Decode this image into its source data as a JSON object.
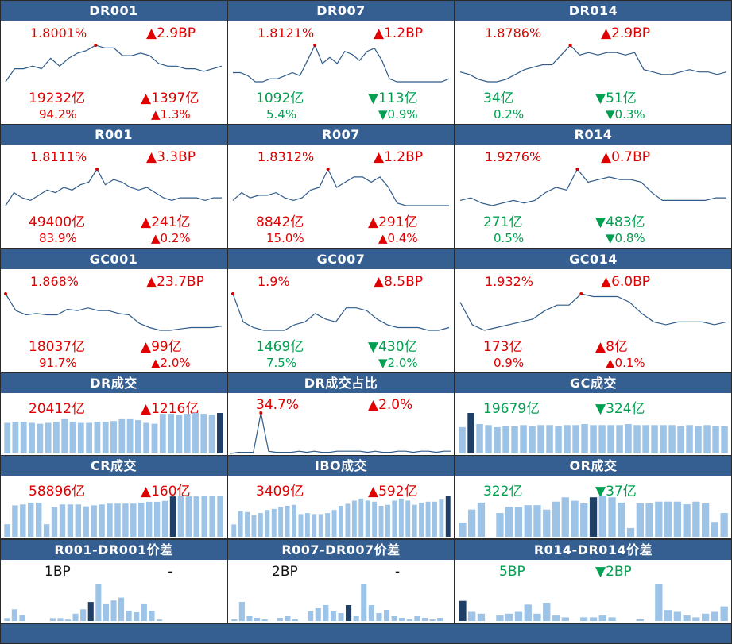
{
  "colors": {
    "header_bg": "#365f91",
    "up": "#e00000",
    "down": "#00a050",
    "neutral": "#111111",
    "line": "#2f5b8a",
    "bar": "#9dc3e6",
    "bar_highlight": "#1f3f66"
  },
  "rows": [
    {
      "kind": "line3",
      "panels": [
        {
          "title": "DR001",
          "rate": "1.8001%",
          "rate_color": "red",
          "bp": "▲2.9BP",
          "bp_color": "red",
          "volume": "19232亿",
          "volume_color": "red",
          "vol_change": "▲1397亿",
          "vol_change_color": "red",
          "share": "94.2%",
          "share_color": "red",
          "share_change": "▲1.3%",
          "share_change_color": "red",
          "chart_data": {
            "type": "line",
            "values": [
              1.66,
              1.71,
              1.71,
              1.72,
              1.71,
              1.75,
              1.72,
              1.75,
              1.77,
              1.78,
              1.8,
              1.79,
              1.79,
              1.76,
              1.76,
              1.77,
              1.76,
              1.73,
              1.72,
              1.72,
              1.71,
              1.71,
              1.7,
              1.71,
              1.72
            ],
            "highlight_index": 10
          }
        },
        {
          "title": "DR007",
          "rate": "1.8121%",
          "rate_color": "red",
          "bp": "▲1.2BP",
          "bp_color": "red",
          "volume": "1092亿",
          "volume_color": "green",
          "vol_change": "▼113亿",
          "vol_change_color": "green",
          "share": "5.4%",
          "share_color": "green",
          "share_change": "▼0.9%",
          "share_change_color": "green",
          "chart_data": {
            "type": "line",
            "values": [
              1.72,
              1.72,
              1.71,
              1.69,
              1.69,
              1.7,
              1.7,
              1.71,
              1.72,
              1.71,
              1.76,
              1.81,
              1.75,
              1.77,
              1.75,
              1.79,
              1.78,
              1.76,
              1.79,
              1.8,
              1.76,
              1.7,
              1.69,
              1.69,
              1.69,
              1.69,
              1.69,
              1.69,
              1.69,
              1.7
            ],
            "highlight_index": 11
          }
        },
        {
          "title": "DR014",
          "rate": "1.8786%",
          "rate_color": "red",
          "bp": "▲2.9BP",
          "bp_color": "red",
          "volume": "34亿",
          "volume_color": "green",
          "vol_change": "▼51亿",
          "vol_change_color": "green",
          "share": "0.2%",
          "share_color": "green",
          "share_change": "▼0.3%",
          "share_change_color": "green",
          "chart_data": {
            "type": "line",
            "values": [
              1.77,
              1.76,
              1.74,
              1.73,
              1.73,
              1.74,
              1.76,
              1.78,
              1.79,
              1.8,
              1.8,
              1.84,
              1.88,
              1.84,
              1.85,
              1.84,
              1.85,
              1.85,
              1.84,
              1.85,
              1.78,
              1.77,
              1.76,
              1.76,
              1.77,
              1.78,
              1.77,
              1.77,
              1.76,
              1.77
            ],
            "highlight_index": 12
          }
        }
      ]
    },
    {
      "kind": "line3",
      "panels": [
        {
          "title": "R001",
          "rate": "1.8111%",
          "rate_color": "red",
          "bp": "▲3.3BP",
          "bp_color": "red",
          "volume": "49400亿",
          "volume_color": "red",
          "vol_change": "▲241亿",
          "vol_change_color": "red",
          "share": "83.9%",
          "share_color": "red",
          "share_change": "▲0.2%",
          "share_change_color": "red",
          "chart_data": {
            "type": "line",
            "values": [
              1.67,
              1.72,
              1.7,
              1.69,
              1.71,
              1.73,
              1.72,
              1.74,
              1.73,
              1.75,
              1.76,
              1.81,
              1.75,
              1.77,
              1.76,
              1.74,
              1.73,
              1.74,
              1.72,
              1.7,
              1.69,
              1.7,
              1.7,
              1.7,
              1.69,
              1.7,
              1.7
            ],
            "highlight_index": 11
          }
        },
        {
          "title": "R007",
          "rate": "1.8312%",
          "rate_color": "red",
          "bp": "▲1.2BP",
          "bp_color": "red",
          "volume": "8842亿",
          "volume_color": "red",
          "vol_change": "▲291亿",
          "vol_change_color": "red",
          "share": "15.0%",
          "share_color": "red",
          "share_change": "▲0.4%",
          "share_change_color": "red",
          "chart_data": {
            "type": "line",
            "values": [
              1.71,
              1.74,
              1.72,
              1.73,
              1.73,
              1.74,
              1.72,
              1.71,
              1.72,
              1.75,
              1.76,
              1.83,
              1.76,
              1.78,
              1.8,
              1.8,
              1.78,
              1.8,
              1.76,
              1.7,
              1.69,
              1.69,
              1.69,
              1.69,
              1.69,
              1.69
            ],
            "highlight_index": 11
          }
        },
        {
          "title": "R014",
          "rate": "1.9276%",
          "rate_color": "red",
          "bp": "▲0.7BP",
          "bp_color": "red",
          "volume": "271亿",
          "volume_color": "green",
          "vol_change": "▼483亿",
          "vol_change_color": "green",
          "share": "0.5%",
          "share_color": "green",
          "share_change": "▼0.8%",
          "share_change_color": "green",
          "chart_data": {
            "type": "line",
            "values": [
              1.81,
              1.82,
              1.8,
              1.79,
              1.8,
              1.81,
              1.8,
              1.81,
              1.84,
              1.86,
              1.85,
              1.93,
              1.88,
              1.89,
              1.9,
              1.89,
              1.89,
              1.88,
              1.84,
              1.81,
              1.81,
              1.81,
              1.81,
              1.81,
              1.82,
              1.82
            ],
            "highlight_index": 11
          }
        }
      ]
    },
    {
      "kind": "line3",
      "panels": [
        {
          "title": "GC001",
          "rate": "1.868%",
          "rate_color": "red",
          "bp": "▲23.7BP",
          "bp_color": "red",
          "volume": "18037亿",
          "volume_color": "red",
          "vol_change": "▲99亿",
          "vol_change_color": "red",
          "share": "91.7%",
          "share_color": "red",
          "share_change": "▲2.0%",
          "share_change_color": "red",
          "chart_data": {
            "type": "line",
            "values": [
              1.87,
              1.75,
              1.72,
              1.73,
              1.72,
              1.72,
              1.76,
              1.75,
              1.77,
              1.75,
              1.75,
              1.73,
              1.72,
              1.66,
              1.63,
              1.61,
              1.61,
              1.62,
              1.63,
              1.63,
              1.63,
              1.64
            ],
            "highlight_index": 0
          }
        },
        {
          "title": "GC007",
          "rate": "1.9%",
          "rate_color": "red",
          "bp": "▲8.5BP",
          "bp_color": "red",
          "volume": "1469亿",
          "volume_color": "green",
          "vol_change": "▼430亿",
          "vol_change_color": "green",
          "share": "7.5%",
          "share_color": "green",
          "share_change": "▼2.0%",
          "share_change_color": "green",
          "chart_data": {
            "type": "line",
            "values": [
              1.9,
              1.8,
              1.78,
              1.77,
              1.77,
              1.77,
              1.79,
              1.8,
              1.83,
              1.81,
              1.8,
              1.85,
              1.85,
              1.84,
              1.81,
              1.79,
              1.78,
              1.78,
              1.78,
              1.77,
              1.77,
              1.78
            ],
            "highlight_index": 0
          }
        },
        {
          "title": "GC014",
          "rate": "1.932%",
          "rate_color": "red",
          "bp": "▲6.0BP",
          "bp_color": "red",
          "volume": "173亿",
          "volume_color": "red",
          "vol_change": "▲8亿",
          "vol_change_color": "red",
          "share": "0.9%",
          "share_color": "red",
          "share_change": "▲0.1%",
          "share_change_color": "red",
          "chart_data": {
            "type": "line",
            "values": [
              1.9,
              1.82,
              1.8,
              1.81,
              1.82,
              1.83,
              1.84,
              1.87,
              1.89,
              1.89,
              1.93,
              1.92,
              1.92,
              1.92,
              1.9,
              1.86,
              1.83,
              1.82,
              1.83,
              1.83,
              1.83,
              1.82,
              1.83
            ],
            "highlight_index": 10
          }
        }
      ]
    },
    {
      "kind": "mixed",
      "panels": [
        {
          "title": "DR成交",
          "volume": "20412亿",
          "volume_color": "red",
          "vol_change": "▲1216亿",
          "vol_change_color": "red",
          "chart_data": {
            "type": "bar",
            "values": [
              34,
              35,
              35,
              34,
              33,
              34,
              35,
              38,
              35,
              34,
              34,
              35,
              35,
              36,
              38,
              38,
              37,
              34,
              33,
              44,
              44,
              43,
              44,
              45,
              44,
              43,
              45
            ],
            "highlight_index": 26
          }
        },
        {
          "title": "DR成交占比",
          "volume": "34.7%",
          "volume_color": "red",
          "vol_change": "▲2.0%",
          "vol_change_color": "red",
          "chart_data": {
            "type": "line",
            "values": [
              3,
              4,
              4,
              4,
              40,
              5,
              4,
              4,
              4,
              5,
              4,
              5,
              4,
              4,
              5,
              5,
              5,
              5,
              4,
              5,
              4,
              4,
              5,
              5,
              4,
              5,
              5,
              4,
              5,
              5
            ],
            "highlight_index": 4
          }
        },
        {
          "title": "GC成交",
          "volume": "19679亿",
          "volume_color": "green",
          "vol_change": "▼324亿",
          "vol_change_color": "green",
          "chart_data": {
            "type": "bar",
            "values": [
              26,
              40,
              29,
              28,
              26,
              27,
              27,
              28,
              27,
              28,
              28,
              27,
              28,
              28,
              29,
              28,
              28,
              28,
              28,
              29,
              28,
              28,
              28,
              28,
              28,
              27,
              28,
              27,
              28,
              27,
              27
            ],
            "highlight_index": 1
          }
        }
      ]
    },
    {
      "kind": "bars3",
      "panels": [
        {
          "title": "CR成交",
          "volume": "58896亿",
          "volume_color": "red",
          "vol_change": "▲160亿",
          "vol_change_color": "red",
          "chart_data": {
            "type": "bar",
            "values": [
              14,
              35,
              36,
              38,
              38,
              14,
              33,
              36,
              36,
              36,
              34,
              35,
              36,
              37,
              37,
              37,
              37,
              38,
              39,
              39,
              40,
              45,
              46,
              45,
              45,
              46,
              46,
              46
            ],
            "highlight_index": 21
          }
        },
        {
          "title": "IBO成交",
          "volume": "3409亿",
          "volume_color": "red",
          "vol_change": "▲592亿",
          "vol_change_color": "red",
          "chart_data": {
            "type": "bar",
            "values": [
              12,
              25,
              24,
              21,
              23,
              26,
              27,
              29,
              30,
              31,
              22,
              23,
              22,
              22,
              23,
              26,
              30,
              32,
              35,
              37,
              35,
              34,
              30,
              31,
              35,
              37,
              35,
              31,
              33,
              34,
              34,
              36,
              40
            ],
            "highlight_index": 32
          }
        },
        {
          "title": "OR成交",
          "volume": "322亿",
          "volume_color": "green",
          "vol_change": "▼37亿",
          "vol_change_color": "green",
          "chart_data": {
            "type": "bar",
            "values": [
              16,
              31,
              39,
              0,
              27,
              34,
              34,
              36,
              36,
              31,
              40,
              45,
              41,
              38,
              45,
              47,
              45,
              39,
              10,
              38,
              38,
              40,
              40,
              40,
              37,
              40,
              38,
              17,
              27
            ],
            "highlight_index": 14
          }
        }
      ]
    },
    {
      "kind": "bars3",
      "panels": [
        {
          "title": "R001-DR001价差",
          "volume": "1BP",
          "volume_color": "black",
          "vol_change": "-",
          "vol_change_color": "black",
          "chart_data": {
            "type": "bar",
            "values": [
              2,
              8,
              4,
              0,
              0,
              0,
              2,
              2,
              1,
              5,
              8,
              13,
              25,
              12,
              14,
              16,
              7,
              6,
              12,
              7,
              1,
              0,
              0,
              0,
              0,
              0,
              0,
              0,
              0
            ],
            "highlight_index": 11
          }
        },
        {
          "title": "R007-DR007价差",
          "volume": "2BP",
          "volume_color": "black",
          "vol_change": "-",
          "vol_change_color": "black",
          "chart_data": {
            "type": "bar",
            "values": [
              1,
              12,
              3,
              2,
              1,
              0,
              2,
              3,
              1,
              0,
              6,
              8,
              10,
              6,
              5,
              10,
              3,
              23,
              10,
              5,
              7,
              3,
              2,
              1,
              3,
              2,
              1,
              2,
              0
            ],
            "highlight_index": 15
          }
        },
        {
          "title": "R014-DR014价差",
          "volume": "5BP",
          "volume_color": "green",
          "vol_change": "▼2BP",
          "vol_change_color": "green",
          "chart_data": {
            "type": "bar",
            "values": [
              11,
              5,
              4,
              0,
              3,
              4,
              5,
              9,
              4,
              10,
              3,
              2,
              0,
              2,
              2,
              3,
              2,
              0,
              0,
              1,
              0,
              20,
              6,
              5,
              3,
              2,
              4,
              5,
              8
            ],
            "highlight_index": 0
          }
        }
      ]
    }
  ]
}
